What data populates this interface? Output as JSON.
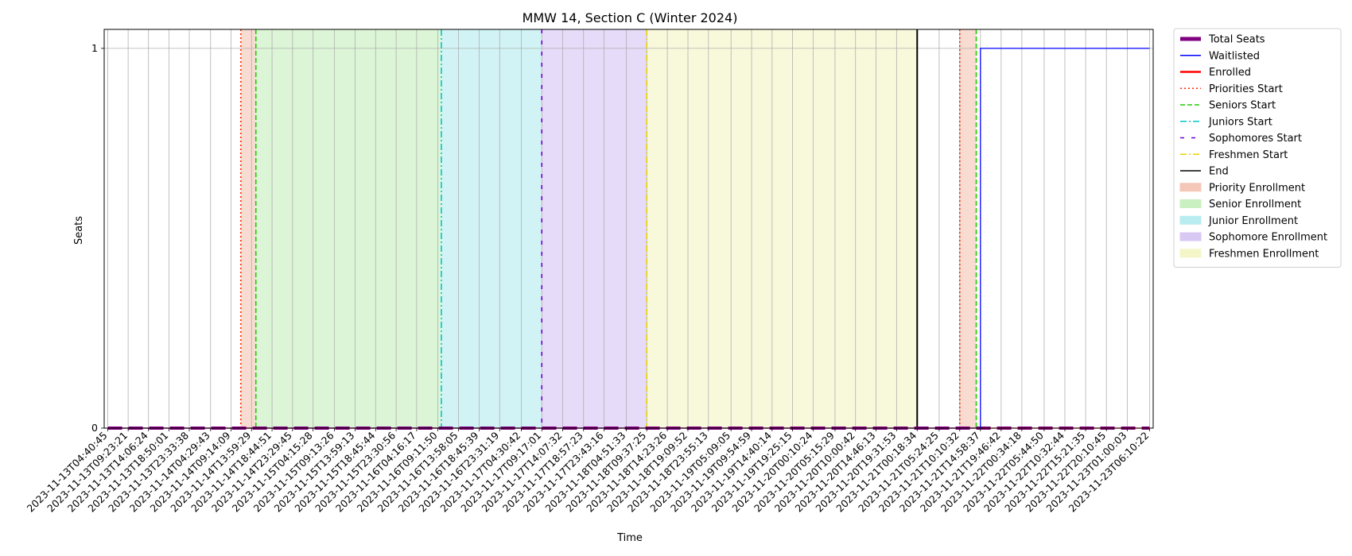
{
  "chart_data": {
    "type": "line",
    "title": "MMW 14, Section C (Winter 2024)",
    "xlabel": "Time",
    "ylabel": "Seats",
    "ylim": [
      0,
      1.05
    ],
    "yticks": [
      0,
      1
    ],
    "grid": true,
    "legend_placement": "outside-right",
    "x": [
      "2023-11-13T04:40:45",
      "2023-11-13T09:23:21",
      "2023-11-13T14:06:24",
      "2023-11-13T18:50:01",
      "2023-11-13T23:33:38",
      "2023-11-14T04:29:43",
      "2023-11-14T09:14:09",
      "2023-11-14T13:59:29",
      "2023-11-14T18:44:51",
      "2023-11-14T23:29:45",
      "2023-11-15T04:15:28",
      "2023-11-15T09:13:26",
      "2023-11-15T13:59:13",
      "2023-11-15T18:45:44",
      "2023-11-15T23:30:56",
      "2023-11-16T04:16:17",
      "2023-11-16T09:11:50",
      "2023-11-16T13:58:05",
      "2023-11-16T18:45:39",
      "2023-11-16T23:31:19",
      "2023-11-17T04:30:42",
      "2023-11-17T09:17:01",
      "2023-11-17T14:07:32",
      "2023-11-17T18:57:23",
      "2023-11-17T23:43:16",
      "2023-11-18T04:51:33",
      "2023-11-18T09:37:25",
      "2023-11-18T14:23:26",
      "2023-11-18T19:09:52",
      "2023-11-18T23:55:13",
      "2023-11-19T05:09:05",
      "2023-11-19T09:54:59",
      "2023-11-19T14:40:14",
      "2023-11-19T19:25:15",
      "2023-11-20T00:10:24",
      "2023-11-20T05:15:29",
      "2023-11-20T10:00:42",
      "2023-11-20T14:46:13",
      "2023-11-20T19:31:53",
      "2023-11-21T00:18:34",
      "2023-11-21T05:24:25",
      "2023-11-21T10:10:32",
      "2023-11-21T14:58:37",
      "2023-11-21T19:46:42",
      "2023-11-22T00:34:18",
      "2023-11-22T05:44:50",
      "2023-11-22T10:32:44",
      "2023-11-22T15:21:35",
      "2023-11-22T20:10:45",
      "2023-11-23T01:00:03",
      "2023-11-23T06:10:22"
    ],
    "series": [
      {
        "name": "Total Seats",
        "color": "#800080",
        "style": "dashed-thick",
        "values": [
          0,
          0,
          0,
          0,
          0,
          0,
          0,
          0,
          0,
          0,
          0,
          0,
          0,
          0,
          0,
          0,
          0,
          0,
          0,
          0,
          0,
          0,
          0,
          0,
          0,
          0,
          0,
          0,
          0,
          0,
          0,
          0,
          0,
          0,
          0,
          0,
          0,
          0,
          0,
          0,
          0,
          0,
          0,
          0,
          0,
          0,
          0,
          0,
          0,
          0,
          0
        ]
      },
      {
        "name": "Waitlisted",
        "color": "#0000ff",
        "style": "solid",
        "values": [
          0,
          0,
          0,
          0,
          0,
          0,
          0,
          0,
          0,
          0,
          0,
          0,
          0,
          0,
          0,
          0,
          0,
          0,
          0,
          0,
          0,
          0,
          0,
          0,
          0,
          0,
          0,
          0,
          0,
          0,
          0,
          0,
          0,
          0,
          0,
          0,
          0,
          0,
          0,
          0,
          0,
          0,
          1,
          1,
          1,
          1,
          1,
          1,
          1,
          1,
          1
        ]
      },
      {
        "name": "Enrolled",
        "color": "#ff0000",
        "style": "solid",
        "values": [
          0,
          0,
          0,
          0,
          0,
          0,
          0,
          0,
          0,
          0,
          0,
          0,
          0,
          0,
          0,
          0,
          0,
          0,
          0,
          0,
          0,
          0,
          0,
          0,
          0,
          0,
          0,
          0,
          0,
          0,
          0,
          0,
          0,
          0,
          0,
          0,
          0,
          0,
          0,
          0,
          0,
          0,
          0,
          0,
          0,
          0,
          0,
          0,
          0,
          0,
          0
        ]
      }
    ],
    "markers": [
      {
        "name": "Priorities Start",
        "color": "#ff2a00",
        "style": "dotted",
        "x": [
          "2023-11-14T11:30:00",
          "2023-11-21T10:10:32"
        ]
      },
      {
        "name": "Seniors Start",
        "color": "#22cc00",
        "style": "dashed",
        "x": [
          "2023-11-14T15:00:00",
          "2023-11-21T14:00:00"
        ]
      },
      {
        "name": "Juniors Start",
        "color": "#00c8c8",
        "style": "dashdot",
        "x": [
          "2023-11-16T10:00:00"
        ]
      },
      {
        "name": "Sophomores Start",
        "color": "#6a00d0",
        "style": "loosedash",
        "x": [
          "2023-11-17T09:17:01"
        ]
      },
      {
        "name": "Freshmen Start",
        "color": "#e8d000",
        "style": "dashdot",
        "x": [
          "2023-11-18T09:37:25"
        ]
      },
      {
        "name": "End",
        "color": "#000000",
        "style": "solid",
        "x": [
          "2023-11-21T00:18:34"
        ]
      }
    ],
    "regions": [
      {
        "name": "Priority Enrollment",
        "color": "#f4c7b8",
        "spans": [
          [
            "2023-11-14T11:30:00",
            "2023-11-14T15:00:00"
          ],
          [
            "2023-11-21T10:10:32",
            "2023-11-21T14:00:00"
          ]
        ]
      },
      {
        "name": "Senior Enrollment",
        "color": "#c8f0c0",
        "spans": [
          [
            "2023-11-14T15:00:00",
            "2023-11-16T10:00:00"
          ]
        ]
      },
      {
        "name": "Junior Enrollment",
        "color": "#b8ecf0",
        "spans": [
          [
            "2023-11-16T10:00:00",
            "2023-11-17T09:17:01"
          ]
        ]
      },
      {
        "name": "Sophomore Enrollment",
        "color": "#d8c8f4",
        "spans": [
          [
            "2023-11-17T09:17:01",
            "2023-11-18T09:37:25"
          ]
        ]
      },
      {
        "name": "Freshmen Enrollment",
        "color": "#f4f6c8",
        "spans": [
          [
            "2023-11-18T09:37:25",
            "2023-11-21T00:18:34"
          ]
        ]
      }
    ],
    "legend": [
      {
        "label": "Total Seats",
        "kind": "line",
        "color": "#800080",
        "style": "thick"
      },
      {
        "label": "Waitlisted",
        "kind": "line",
        "color": "#0000ff",
        "style": "solid"
      },
      {
        "label": "Enrolled",
        "kind": "line",
        "color": "#ff0000",
        "style": "solid-thick"
      },
      {
        "label": "Priorities Start",
        "kind": "line",
        "color": "#ff2a00",
        "style": "dotted"
      },
      {
        "label": "Seniors Start",
        "kind": "line",
        "color": "#22cc00",
        "style": "dashed"
      },
      {
        "label": "Juniors Start",
        "kind": "line",
        "color": "#00c8c8",
        "style": "dashdot"
      },
      {
        "label": "Sophomores Start",
        "kind": "line",
        "color": "#6a00d0",
        "style": "loosedash"
      },
      {
        "label": "Freshmen Start",
        "kind": "line",
        "color": "#e8d000",
        "style": "dashdot"
      },
      {
        "label": "End",
        "kind": "line",
        "color": "#000000",
        "style": "solid"
      },
      {
        "label": "Priority Enrollment",
        "kind": "patch",
        "color": "#f4c7b8"
      },
      {
        "label": "Senior Enrollment",
        "kind": "patch",
        "color": "#c8f0c0"
      },
      {
        "label": "Junior Enrollment",
        "kind": "patch",
        "color": "#b8ecf0"
      },
      {
        "label": "Sophomore Enrollment",
        "kind": "patch",
        "color": "#d8c8f4"
      },
      {
        "label": "Freshmen Enrollment",
        "kind": "patch",
        "color": "#f4f6c8"
      }
    ]
  }
}
